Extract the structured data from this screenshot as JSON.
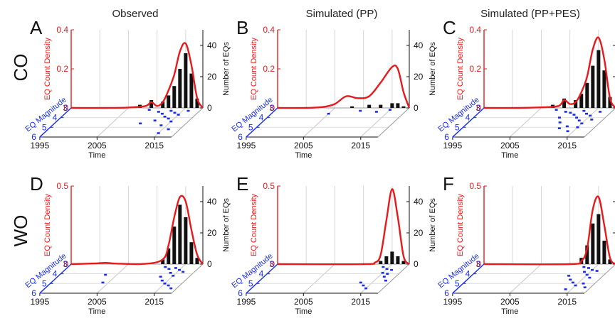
{
  "figure": {
    "column_titles": [
      "Observed",
      "Simulated (PP)",
      "Simulated (PP+PES)"
    ],
    "row_labels": [
      "CO",
      "WO"
    ]
  },
  "colors": {
    "density_curve": "#e8191c",
    "magnitude_axis": "#1a2ee6",
    "histogram": "#111111",
    "scatter": "#1a2ee6",
    "box": "#9a9a9a"
  },
  "chart_data": [
    {
      "panel": "A",
      "type": "area",
      "row": "CO",
      "column": "Observed",
      "density_ticks": [
        "0.4",
        "0.2",
        "0"
      ],
      "density_label": "EQ Count Density",
      "count_ticks": [
        "40",
        "20",
        "0"
      ],
      "count_label": "Number of EQs",
      "time_ticks": [
        "1995",
        "2005",
        "2015"
      ],
      "time_label": "Time",
      "magnitude_ticks": [
        "3",
        "4",
        "5",
        "6"
      ],
      "magnitude_label": "EQ Magnitude",
      "density_curve": {
        "x": [
          1995,
          2001,
          2005,
          2008,
          2009,
          2010,
          2011,
          2012,
          2013,
          2014,
          2015,
          2016,
          2017,
          2018
        ],
        "y": [
          0,
          0,
          0.002,
          0.01,
          0.03,
          0.01,
          0.03,
          0.09,
          0.17,
          0.29,
          0.33,
          0.22,
          0.05,
          0
        ]
      },
      "histogram": {
        "x": [
          2007,
          2009,
          2011,
          2012,
          2013,
          2014,
          2015,
          2016,
          2017
        ],
        "counts": [
          2,
          5,
          4,
          8,
          14,
          25,
          35,
          22,
          6
        ]
      },
      "scatter": {
        "time": [
          2009,
          2011,
          2012,
          2013,
          2013,
          2014,
          2014,
          2015,
          2015,
          2016,
          2012,
          2014,
          2010,
          2016,
          2015
        ],
        "magnitude": [
          3.2,
          3.4,
          3.6,
          3.3,
          3.9,
          3.5,
          4.1,
          3.7,
          4.4,
          3.3,
          4.3,
          4.8,
          4.6,
          5.2,
          5.6
        ]
      }
    },
    {
      "panel": "B",
      "type": "area",
      "row": "CO",
      "column": "Simulated (PP)",
      "density_ticks": [
        "0.4",
        "0.2",
        "0"
      ],
      "density_label": "EQ Count Density",
      "count_ticks": [
        "40",
        "20",
        "0"
      ],
      "count_label": "Number of EQs",
      "time_ticks": [
        "1995",
        "2005",
        "2015"
      ],
      "time_label": "Time",
      "magnitude_ticks": [
        "3",
        "4",
        "5",
        "6"
      ],
      "magnitude_label": "EQ Magnitude",
      "density_curve": {
        "x": [
          1995,
          2000,
          2003,
          2005,
          2007,
          2009,
          2011,
          2013,
          2015,
          2016,
          2017,
          2018
        ],
        "y": [
          0,
          0,
          0.005,
          0.02,
          0.06,
          0.05,
          0.06,
          0.13,
          0.21,
          0.2,
          0.08,
          0
        ]
      },
      "histogram": {
        "x": [
          2008,
          2011,
          2013,
          2015,
          2016,
          2017
        ],
        "counts": [
          1,
          2,
          2,
          3,
          3,
          1
        ]
      },
      "scatter": {
        "time": [
          2005,
          2010,
          2013,
          2015
        ],
        "magnitude": [
          3.6,
          3.3,
          3.4,
          3.2
        ]
      }
    },
    {
      "panel": "C",
      "type": "area",
      "row": "CO",
      "column": "Simulated (PP+PES)",
      "density_ticks": [
        "0.4",
        "0.2",
        "0"
      ],
      "density_label": "EQ Count Density",
      "count_ticks": [
        "40",
        "20",
        "0"
      ],
      "count_label": "Number of EQs",
      "time_ticks": [
        "1995",
        "2005",
        "2015"
      ],
      "time_label": "Time",
      "magnitude_ticks": [
        "3",
        "4",
        "5",
        "6"
      ],
      "magnitude_label": "EQ Magnitude",
      "density_curve": {
        "x": [
          1995,
          2001,
          2005,
          2008,
          2009,
          2010,
          2011,
          2012,
          2013,
          2014,
          2015,
          2016,
          2017,
          2018
        ],
        "y": [
          0,
          0,
          0.003,
          0.01,
          0.04,
          0.02,
          0.03,
          0.08,
          0.16,
          0.3,
          0.36,
          0.25,
          0.05,
          0
        ]
      },
      "histogram": {
        "x": [
          2007,
          2009,
          2011,
          2012,
          2013,
          2014,
          2015,
          2016,
          2017
        ],
        "counts": [
          2,
          6,
          5,
          9,
          16,
          27,
          37,
          24,
          7
        ]
      },
      "scatter": {
        "time": [
          2008,
          2010,
          2011,
          2012,
          2013,
          2013,
          2014,
          2014,
          2015,
          2015,
          2016,
          2011,
          2013,
          2012,
          2015,
          2014,
          2016,
          2010
        ],
        "magnitude": [
          3.2,
          3.4,
          3.5,
          3.7,
          3.3,
          4.0,
          3.6,
          4.3,
          3.8,
          4.6,
          3.4,
          4.5,
          4.9,
          5.1,
          5.0,
          5.4,
          4.2,
          4.0
        ]
      }
    },
    {
      "panel": "D",
      "type": "area",
      "row": "WO",
      "column": "Observed",
      "density_ticks": [
        "0.5",
        "0"
      ],
      "density_label": "EQ Count Density",
      "count_ticks": [
        "40",
        "20",
        "0"
      ],
      "count_label": "Number of EQs",
      "time_ticks": [
        "1995",
        "2005",
        "2015"
      ],
      "time_label": "Time",
      "magnitude_ticks": [
        "3",
        "4",
        "5",
        "6"
      ],
      "magnitude_label": "EQ Magnitude",
      "density_curve": {
        "x": [
          1995,
          1999,
          2001,
          2003,
          2008,
          2011,
          2012,
          2013,
          2014,
          2015,
          2016,
          2017,
          2018
        ],
        "y": [
          0,
          0.004,
          0.008,
          0.003,
          0.002,
          0.03,
          0.12,
          0.3,
          0.43,
          0.4,
          0.22,
          0.06,
          0
        ]
      },
      "histogram": {
        "x": [
          2011,
          2012,
          2013,
          2014,
          2015,
          2016,
          2017
        ],
        "counts": [
          3,
          10,
          24,
          38,
          30,
          14,
          4
        ]
      },
      "scatter": {
        "time": [
          2012,
          2013,
          2014,
          2014,
          2015,
          2015,
          2016,
          2013,
          2014,
          2015,
          2016,
          2017,
          2003,
          2004
        ],
        "magnitude": [
          3.3,
          3.5,
          3.4,
          3.9,
          3.6,
          4.2,
          3.8,
          4.3,
          4.7,
          5.0,
          5.2,
          5.5,
          4.1,
          4.9
        ]
      }
    },
    {
      "panel": "E",
      "type": "area",
      "row": "WO",
      "column": "Simulated (PP)",
      "density_ticks": [
        "0.5",
        "0"
      ],
      "density_label": "EQ Count Density",
      "count_ticks": [
        "40",
        "20",
        "0"
      ],
      "count_label": "Number of EQs",
      "time_ticks": [
        "1995",
        "2005",
        "2015"
      ],
      "time_label": "Time",
      "magnitude_ticks": [
        "3",
        "4",
        "5",
        "6"
      ],
      "magnitude_label": "EQ Magnitude",
      "density_curve": {
        "x": [
          1995,
          2010,
          2012,
          2013,
          2014,
          2015,
          2016,
          2017,
          2018
        ],
        "y": [
          0,
          0,
          0.01,
          0.06,
          0.28,
          0.48,
          0.3,
          0.05,
          0
        ]
      },
      "histogram": {
        "x": [
          2013,
          2014,
          2015,
          2016,
          2017
        ],
        "counts": [
          2,
          5,
          8,
          5,
          2
        ]
      },
      "scatter": {
        "time": [
          2014,
          2015,
          2015,
          2016,
          2016,
          2017,
          2013,
          2014,
          2015,
          2016
        ],
        "magnitude": [
          3.3,
          3.5,
          3.9,
          3.6,
          4.3,
          4.7,
          4.9,
          5.2,
          5.5,
          4.0
        ]
      }
    },
    {
      "panel": "F",
      "type": "area",
      "row": "WO",
      "column": "Simulated (PP+PES)",
      "density_ticks": [
        "0.5",
        "0"
      ],
      "density_label": "EQ Count Density",
      "count_ticks": [
        "40",
        "20",
        "0"
      ],
      "count_label": "Number of EQs",
      "time_ticks": [
        "1995",
        "2005",
        "2015"
      ],
      "time_label": "Time",
      "magnitude_ticks": [
        "3",
        "4",
        "5",
        "6"
      ],
      "magnitude_label": "EQ Magnitude",
      "density_curve": {
        "x": [
          1995,
          2010,
          2012,
          2013,
          2014,
          2015,
          2016,
          2017,
          2018
        ],
        "y": [
          0,
          0,
          0.02,
          0.1,
          0.35,
          0.43,
          0.25,
          0.04,
          0
        ]
      },
      "histogram": {
        "x": [
          2012,
          2013,
          2014,
          2015,
          2016,
          2017
        ],
        "counts": [
          4,
          12,
          26,
          32,
          15,
          3
        ]
      },
      "scatter": {
        "time": [
          2013,
          2014,
          2014,
          2015,
          2015,
          2016,
          2016,
          2013,
          2014,
          2015,
          2016,
          2017,
          2012,
          2014
        ],
        "magnitude": [
          3.3,
          3.4,
          3.8,
          3.6,
          4.1,
          3.7,
          4.4,
          4.6,
          4.9,
          5.2,
          5.0,
          5.4,
          4.2,
          5.6
        ]
      }
    }
  ]
}
